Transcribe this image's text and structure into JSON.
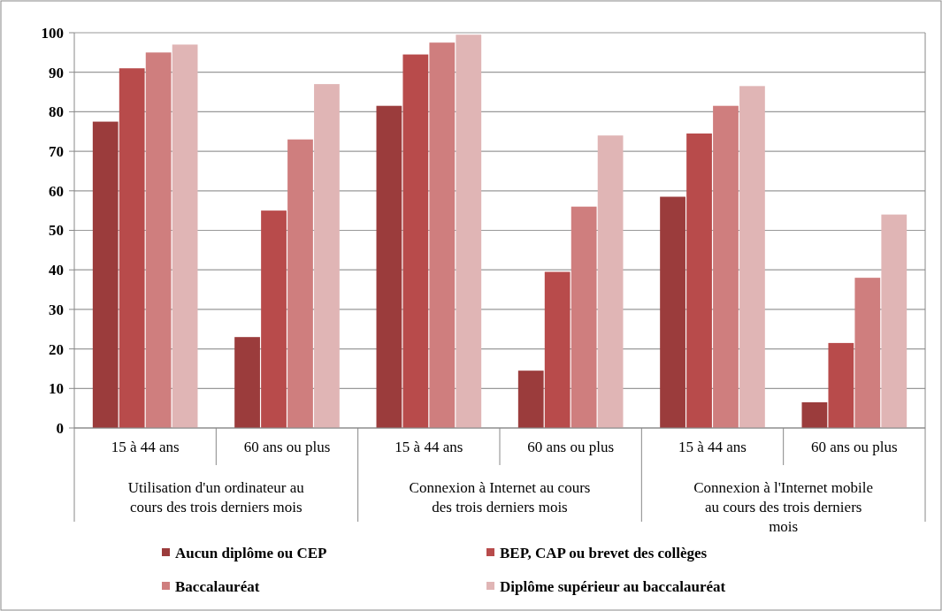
{
  "chart_data": {
    "type": "bar",
    "categories": [
      "15 à 44 ans",
      "60 ans ou plus",
      "15 à 44 ans",
      "60 ans ou plus",
      "15 à 44 ans",
      "60 ans ou plus"
    ],
    "annotations": [
      "Utilisation d'un ordinateur au cours des trois derniers mois",
      "Connexion à Internet au cours des trois derniers mois",
      "Connexion à l'Internet mobile au cours des trois derniers mois"
    ],
    "series": [
      {
        "name": "Aucun diplôme ou CEP",
        "color": "#9b3c3c",
        "values": [
          77.5,
          23,
          81.5,
          14.5,
          58.5,
          6.5
        ]
      },
      {
        "name": "BEP, CAP ou brevet des collèges",
        "color": "#b84b4b",
        "values": [
          91,
          55,
          94.5,
          39.5,
          74.5,
          21.5
        ]
      },
      {
        "name": "Baccalauréat",
        "color": "#cf7e7e",
        "values": [
          95,
          73,
          97.5,
          56,
          81.5,
          38
        ]
      },
      {
        "name": "Diplôme supérieur au baccalauréat",
        "color": "#e0b5b5",
        "values": [
          97,
          87,
          99.5,
          74,
          86.5,
          54
        ]
      }
    ],
    "ylim": [
      0,
      100
    ],
    "yticks": [
      0,
      10,
      20,
      30,
      40,
      50,
      60,
      70,
      80,
      90,
      100
    ],
    "grid": "y",
    "legend": "bottom"
  }
}
